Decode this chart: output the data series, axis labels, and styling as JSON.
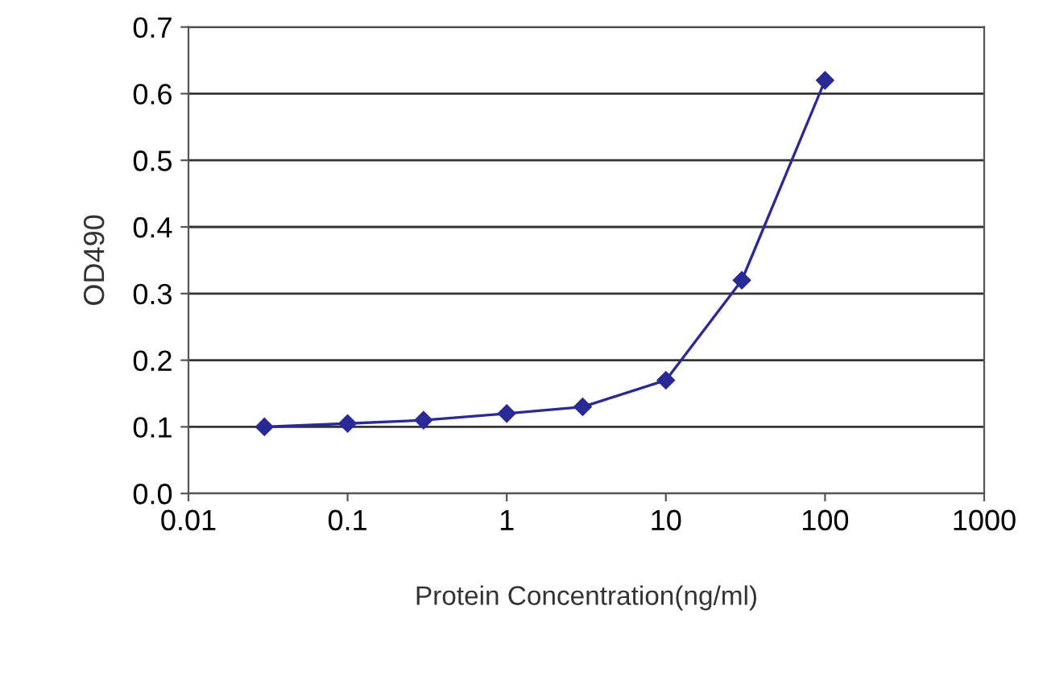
{
  "chart_data": {
    "type": "line",
    "xlabel": "Protein Concentration(ng/ml)",
    "ylabel": "OD490",
    "x": [
      0.03,
      0.1,
      0.3,
      1,
      3,
      10,
      30,
      100
    ],
    "series": [
      {
        "color": "#2a2a96",
        "values": [
          0.1,
          0.105,
          0.11,
          0.12,
          0.13,
          0.17,
          0.32,
          0.62
        ]
      }
    ],
    "log": "x",
    "xlim": [
      0.01,
      1000
    ],
    "xticks": [
      {
        "value": 0.01,
        "label": "0.01"
      },
      {
        "value": 0.1,
        "label": "0.1"
      },
      {
        "value": 1,
        "label": "1"
      },
      {
        "value": 10,
        "label": "10"
      },
      {
        "value": 100,
        "label": "100"
      },
      {
        "value": 1000,
        "label": "1000"
      }
    ],
    "ylim": [
      0,
      0.7
    ],
    "yticks": [
      {
        "value": 0,
        "label": "0.0"
      },
      {
        "value": 0.1,
        "label": "0.1"
      },
      {
        "value": 0.2,
        "label": "0.2"
      },
      {
        "value": 0.3,
        "label": "0.3"
      },
      {
        "value": 0.4,
        "label": "0.4"
      },
      {
        "value": 0.5,
        "label": "0.5"
      },
      {
        "value": 0.6,
        "label": "0.6"
      },
      {
        "value": 0.7,
        "label": "0.7"
      }
    ],
    "grid": "y",
    "marker": "diamond",
    "line_style": "solid"
  }
}
